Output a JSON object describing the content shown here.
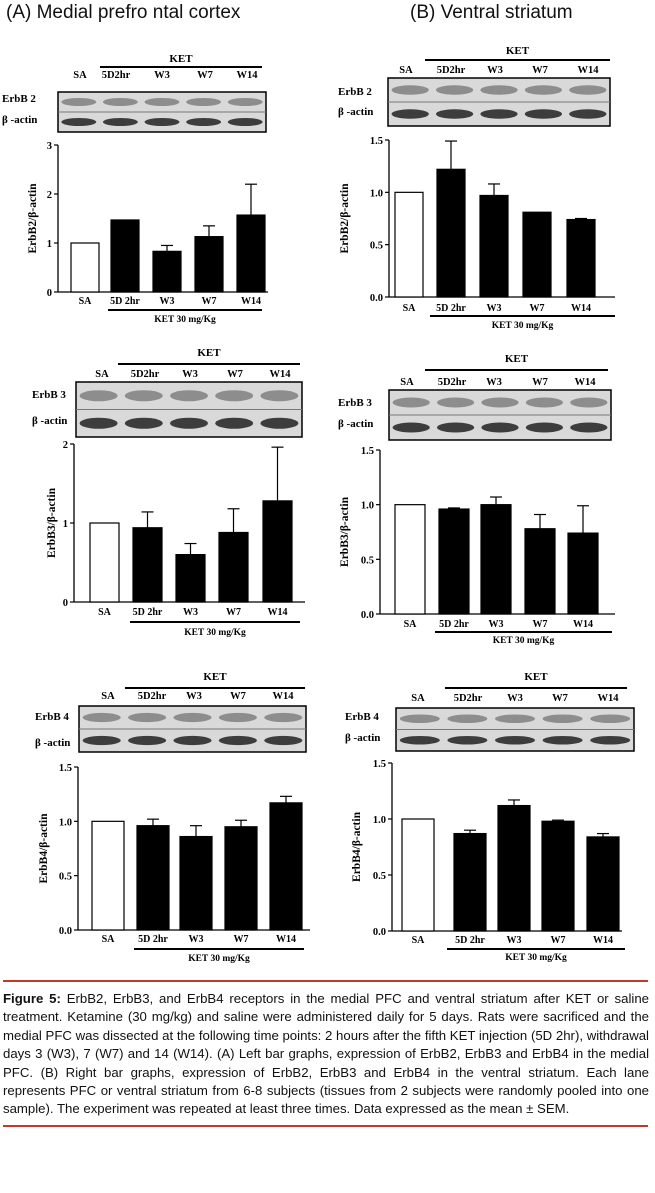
{
  "titles": {
    "left": "(A) Medial prefro ntal cortex",
    "right": "(B) Ventral striatum"
  },
  "panels": [
    {
      "id": "A1",
      "blot_group": "KET",
      "lanes": [
        "SA",
        "5D2hr",
        "W3",
        "W7",
        "W14"
      ],
      "blot_rows": [
        "ErbB 2",
        "β -actin"
      ]
    },
    {
      "id": "B1",
      "blot_group": "KET",
      "lanes": [
        "SA",
        "5D2hr",
        "W3",
        "W7",
        "W14"
      ],
      "blot_rows": [
        "ErbB 2",
        "β -actin"
      ]
    },
    {
      "id": "A2",
      "blot_group": "KET",
      "lanes": [
        "SA",
        "5D2hr",
        "W3",
        "W7",
        "W14"
      ],
      "blot_rows": [
        "ErbB 3",
        "β -actin"
      ]
    },
    {
      "id": "B2",
      "blot_group": "KET",
      "lanes": [
        "SA",
        "5D2hr",
        "W3",
        "W7",
        "W14"
      ],
      "blot_rows": [
        "ErbB 3",
        "β -actin"
      ]
    },
    {
      "id": "A3",
      "blot_group": "KET",
      "lanes": [
        "SA",
        "5D2hr",
        "W3",
        "W7",
        "W14"
      ],
      "blot_rows": [
        "ErbB 4",
        "β -actin"
      ]
    },
    {
      "id": "B3",
      "blot_group": "KET",
      "lanes": [
        "SA",
        "5D2hr",
        "W3",
        "W7",
        "W14"
      ],
      "blot_rows": [
        "ErbB 4",
        "β -actin"
      ]
    }
  ],
  "chart_data": [
    {
      "type": "bar",
      "panel": "A1",
      "ylabel": "ErbB2/β-actin",
      "ylim": [
        0,
        3
      ],
      "yticks": [
        "0",
        "1",
        "2",
        "3"
      ],
      "categories": [
        "SA",
        "5D 2hr",
        "W3",
        "W7",
        "W14"
      ],
      "values": [
        1.0,
        1.47,
        0.83,
        1.13,
        1.57
      ],
      "errors": [
        0,
        0,
        0.12,
        0.22,
        0.63
      ],
      "fills": [
        "#ffffff",
        "#000000",
        "#000000",
        "#000000",
        "#000000"
      ],
      "group_label": "KET 30 mg/Kg"
    },
    {
      "type": "bar",
      "panel": "B1",
      "ylabel": "ErbB2/β-actin",
      "ylim": [
        0,
        1.5
      ],
      "yticks": [
        "0.0",
        "0.5",
        "1.0",
        "1.5"
      ],
      "categories": [
        "SA",
        "5D 2hr",
        "W3",
        "W7",
        "W14"
      ],
      "values": [
        1.0,
        1.22,
        0.97,
        0.81,
        0.74
      ],
      "errors": [
        0,
        0.27,
        0.11,
        0,
        0.01
      ],
      "fills": [
        "#ffffff",
        "#000000",
        "#000000",
        "#000000",
        "#000000"
      ],
      "group_label": "KET 30 mg/Kg"
    },
    {
      "type": "bar",
      "panel": "A2",
      "ylabel": "ErbB3/β-actin",
      "ylim": [
        0,
        2
      ],
      "yticks": [
        "0",
        "1",
        "2"
      ],
      "categories": [
        "SA",
        "5D 2hr",
        "W3",
        "W7",
        "W14"
      ],
      "values": [
        1.0,
        0.94,
        0.6,
        0.88,
        1.28
      ],
      "errors": [
        0,
        0.2,
        0.14,
        0.3,
        0.68
      ],
      "fills": [
        "#ffffff",
        "#000000",
        "#000000",
        "#000000",
        "#000000"
      ],
      "group_label": "KET 30 mg/Kg"
    },
    {
      "type": "bar",
      "panel": "B2",
      "ylabel": "ErbB3/β-actin",
      "ylim": [
        0,
        1.5
      ],
      "yticks": [
        "0.0",
        "0.5",
        "1.0",
        "1.5"
      ],
      "categories": [
        "SA",
        "5D 2hr",
        "W3",
        "W7",
        "W14"
      ],
      "values": [
        1.0,
        0.96,
        1.0,
        0.78,
        0.74
      ],
      "errors": [
        0,
        0.01,
        0.07,
        0.13,
        0.25
      ],
      "fills": [
        "#ffffff",
        "#000000",
        "#000000",
        "#000000",
        "#000000"
      ],
      "group_label": "KET 30 mg/Kg"
    },
    {
      "type": "bar",
      "panel": "A3",
      "ylabel": "ErbB4/β-actin",
      "ylim": [
        0,
        1.5
      ],
      "yticks": [
        "0.0",
        "0.5",
        "1.0",
        "1.5"
      ],
      "categories": [
        "SA",
        "5D 2hr",
        "W3",
        "W7",
        "W14"
      ],
      "values": [
        1.0,
        0.96,
        0.86,
        0.95,
        1.17
      ],
      "errors": [
        0,
        0.06,
        0.1,
        0.06,
        0.06
      ],
      "fills": [
        "#ffffff",
        "#000000",
        "#000000",
        "#000000",
        "#000000"
      ],
      "group_label": "KET 30 mg/Kg"
    },
    {
      "type": "bar",
      "panel": "B3",
      "ylabel": "ErbB4/β-actin",
      "ylim": [
        0,
        1.5
      ],
      "yticks": [
        "0.0",
        "0.5",
        "1.0",
        "1.5"
      ],
      "categories": [
        "SA",
        "5D 2hr",
        "W3",
        "W7",
        "W14"
      ],
      "values": [
        1.0,
        0.87,
        1.12,
        0.98,
        0.84
      ],
      "errors": [
        0,
        0.03,
        0.05,
        0.01,
        0.03
      ],
      "fills": [
        "#ffffff",
        "#000000",
        "#000000",
        "#000000",
        "#000000"
      ],
      "group_label": "KET 30 mg/Kg"
    }
  ],
  "caption": {
    "label": "Figure 5:",
    "text": " ErbB2, ErbB3, and ErbB4 receptors in the medial PFC and ventral striatum after KET or saline treatment. Ketamine (30 mg/kg) and saline were administered daily for 5 days. Rats were sacrificed and the medial PFC was dissected at the following time points: 2 hours after the fifth KET injection (5D 2hr), withdrawal days 3 (W3), 7 (W7) and 14 (W14). (A) Left bar graphs, expression of ErbB2, ErbB3 and ErbB4 in the medial PFC. (B) Right bar graphs, expression of ErbB2, ErbB3 and ErbB4 in the ventral striatum. Each lane represents PFC or ventral striatum from 6-8 subjects (tissues from 2 subjects were randomly pooled into one sample). The experiment was repeated at least three times. Data expressed as the mean ± SEM."
  }
}
